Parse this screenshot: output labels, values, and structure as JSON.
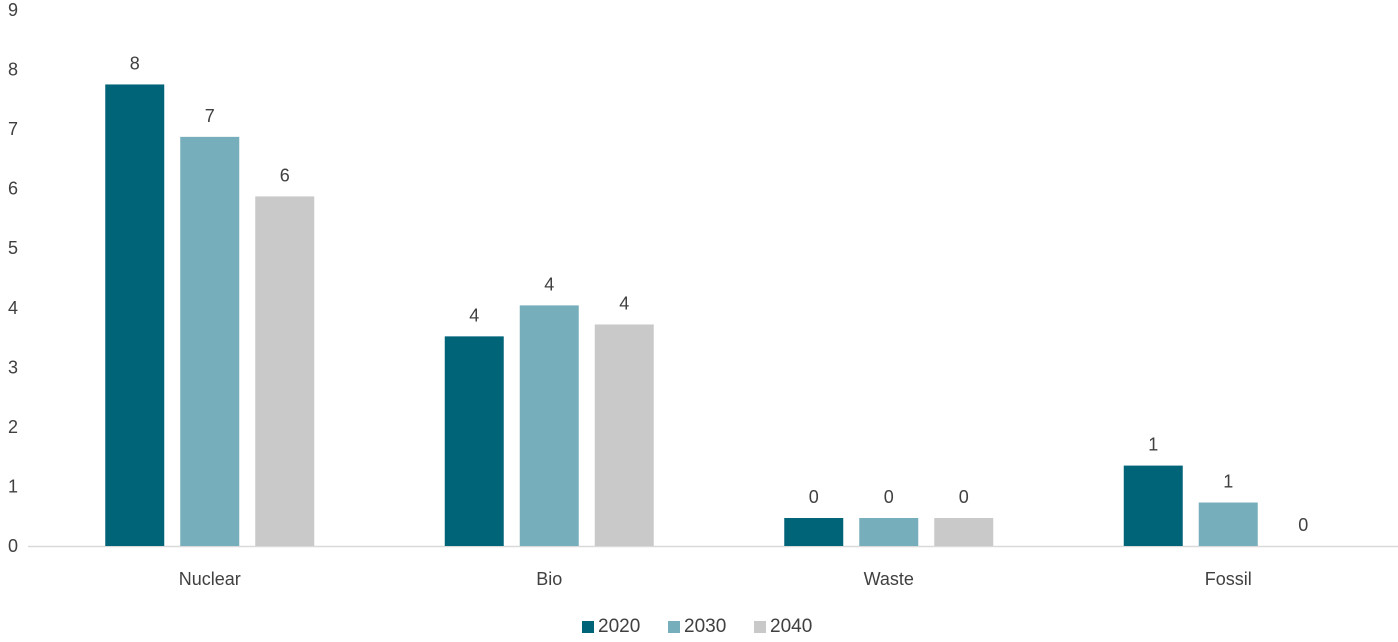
{
  "chart_data": {
    "type": "bar",
    "categories": [
      "Nuclear",
      "Bio",
      "Waste",
      "Fossil"
    ],
    "series": [
      {
        "name": "2020",
        "color": "#006479",
        "values": [
          7.75,
          3.52,
          0.47,
          1.35
        ],
        "labels": [
          "8",
          "4",
          "0",
          "1"
        ]
      },
      {
        "name": "2030",
        "color": "#76AEBB",
        "values": [
          6.87,
          4.04,
          0.47,
          0.73
        ],
        "labels": [
          "7",
          "4",
          "0",
          "1"
        ]
      },
      {
        "name": "2040",
        "color": "#C9C9C9",
        "values": [
          5.87,
          3.72,
          0.47,
          0.0
        ],
        "labels": [
          "6",
          "4",
          "0",
          "0"
        ]
      }
    ],
    "ylim": [
      0,
      9
    ],
    "yticks": [
      "0",
      "1",
      "2",
      "3",
      "4",
      "5",
      "6",
      "7",
      "8",
      "9"
    ],
    "gridlines": false,
    "legend_position": "bottom-center",
    "axis_color": "#D9D9D9",
    "text_color": "#404040"
  }
}
